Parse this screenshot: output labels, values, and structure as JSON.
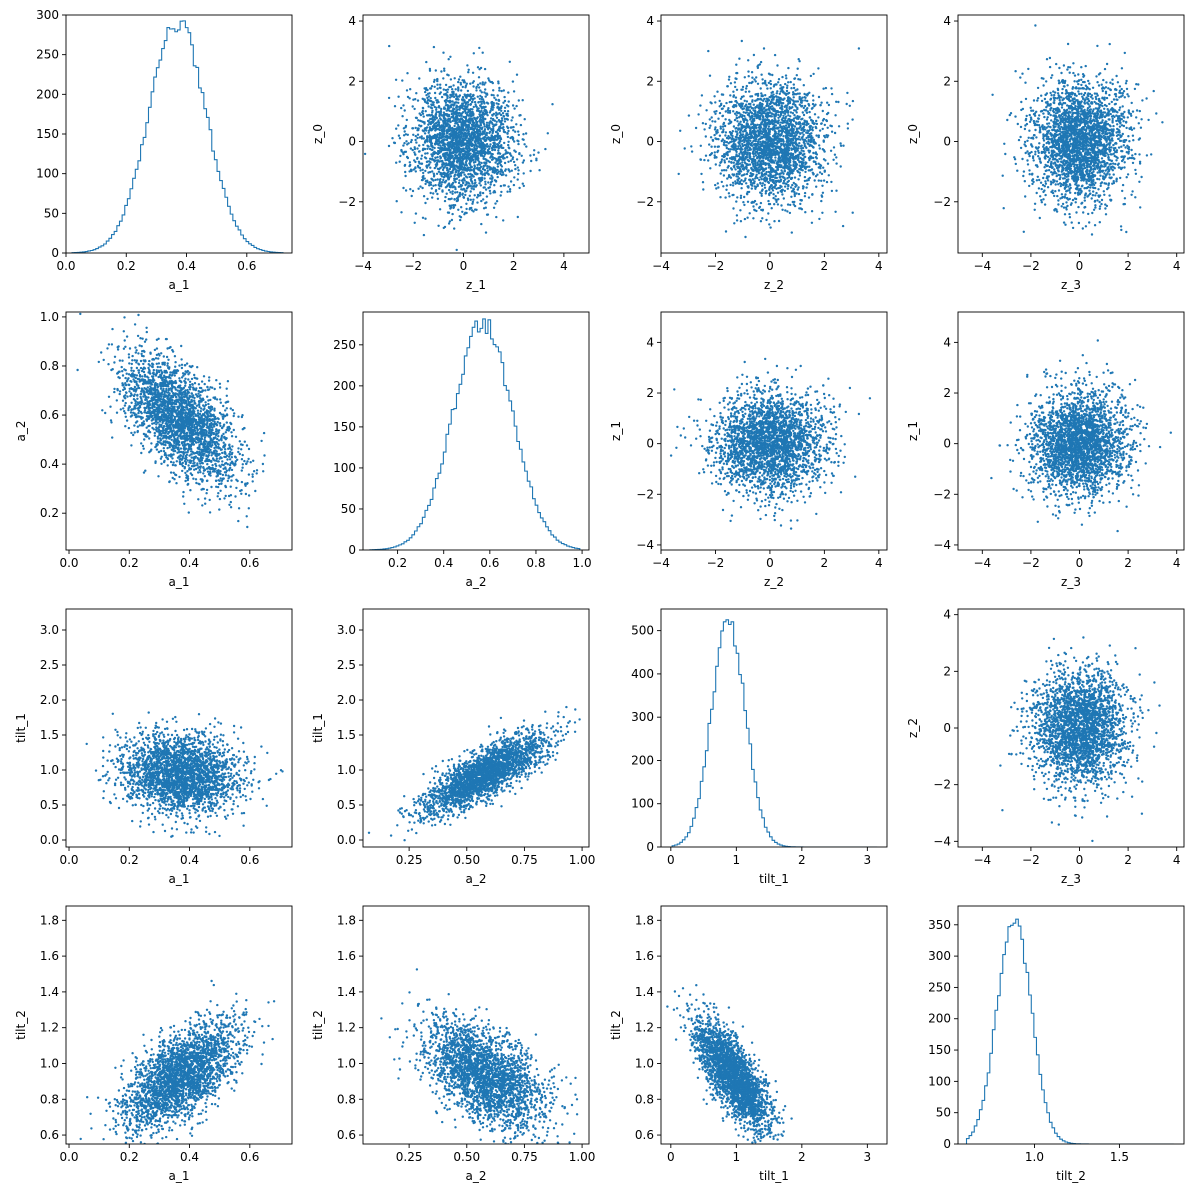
{
  "figure": {
    "series_color": "#1f77b4"
  },
  "chart_data": [
    {
      "type": "histogram",
      "row": 0,
      "col": 0,
      "xlabel": "a_1",
      "ylabel": "",
      "xlim": [
        0.0,
        0.75
      ],
      "ylim": [
        0,
        300
      ],
      "xticks": [
        0.0,
        0.2,
        0.4,
        0.6
      ],
      "xtick_labels": [
        "0.0",
        "0.2",
        "0.4",
        "0.6"
      ],
      "yticks": [
        0,
        50,
        100,
        150,
        200,
        250,
        300
      ],
      "ytick_labels": [
        "0",
        "50",
        "100",
        "150",
        "200",
        "250",
        "300"
      ],
      "bin_range": [
        0.02,
        0.72
      ],
      "peak_x": 0.37,
      "peak_height": 290,
      "spread": 0.095
    },
    {
      "type": "scatter",
      "row": 0,
      "col": 1,
      "xlabel": "z_1",
      "ylabel": "z_0",
      "xlim": [
        -4.0,
        5.0
      ],
      "ylim": [
        -3.7,
        4.2
      ],
      "xticks": [
        -4,
        -2,
        0,
        2,
        4
      ],
      "xtick_labels": [
        "−4",
        "−2",
        "0",
        "2",
        "4"
      ],
      "yticks": [
        -2,
        0,
        2,
        4
      ],
      "ytick_labels": [
        "−2",
        "0",
        "2",
        "4"
      ],
      "x_center": 0,
      "x_spread": 1.0,
      "y_center": 0,
      "y_spread": 1.0,
      "correlation": 0
    },
    {
      "type": "scatter",
      "row": 0,
      "col": 2,
      "xlabel": "z_2",
      "ylabel": "z_0",
      "xlim": [
        -4.0,
        4.3
      ],
      "ylim": [
        -3.7,
        4.2
      ],
      "xticks": [
        -4,
        -2,
        0,
        2,
        4
      ],
      "xtick_labels": [
        "−4",
        "−2",
        "0",
        "2",
        "4"
      ],
      "yticks": [
        -2,
        0,
        2,
        4
      ],
      "ytick_labels": [
        "−2",
        "0",
        "2",
        "4"
      ],
      "x_center": 0,
      "x_spread": 1.0,
      "y_center": 0,
      "y_spread": 1.0,
      "correlation": 0
    },
    {
      "type": "scatter",
      "row": 0,
      "col": 3,
      "xlabel": "z_3",
      "ylabel": "z_0",
      "xlim": [
        -5.0,
        4.3
      ],
      "ylim": [
        -3.7,
        4.2
      ],
      "xticks": [
        -4,
        -2,
        0,
        2,
        4
      ],
      "xtick_labels": [
        "−4",
        "−2",
        "0",
        "2",
        "4"
      ],
      "yticks": [
        -2,
        0,
        2,
        4
      ],
      "ytick_labels": [
        "−2",
        "0",
        "2",
        "4"
      ],
      "x_center": 0,
      "x_spread": 1.0,
      "y_center": 0,
      "y_spread": 1.0,
      "correlation": 0
    },
    {
      "type": "scatter",
      "row": 1,
      "col": 0,
      "xlabel": "a_1",
      "ylabel": "a_2",
      "xlim": [
        -0.01,
        0.74
      ],
      "ylim": [
        0.05,
        1.02
      ],
      "xticks": [
        0.0,
        0.2,
        0.4,
        0.6
      ],
      "xtick_labels": [
        "0.0",
        "0.2",
        "0.4",
        "0.6"
      ],
      "yticks": [
        0.2,
        0.4,
        0.6,
        0.8,
        1.0
      ],
      "ytick_labels": [
        "0.2",
        "0.4",
        "0.6",
        "0.8",
        "1.0"
      ],
      "x_center": 0.37,
      "x_spread": 0.095,
      "y_center": 0.58,
      "y_spread": 0.13,
      "correlation": -0.6
    },
    {
      "type": "histogram",
      "row": 1,
      "col": 1,
      "xlabel": "a_2",
      "ylabel": "",
      "xlim": [
        0.05,
        1.03
      ],
      "ylim": [
        0,
        290
      ],
      "xticks": [
        0.2,
        0.4,
        0.6,
        0.8,
        1.0
      ],
      "xtick_labels": [
        "0.2",
        "0.4",
        "0.6",
        "0.8",
        "1.0"
      ],
      "yticks": [
        0,
        50,
        100,
        150,
        200,
        250
      ],
      "ytick_labels": [
        "0",
        "50",
        "100",
        "150",
        "200",
        "250"
      ],
      "bin_range": [
        0.08,
        0.99
      ],
      "peak_x": 0.57,
      "peak_height": 275,
      "spread": 0.13
    },
    {
      "type": "scatter",
      "row": 1,
      "col": 2,
      "xlabel": "z_2",
      "ylabel": "z_1",
      "xlim": [
        -4.0,
        4.3
      ],
      "ylim": [
        -4.2,
        5.2
      ],
      "xticks": [
        -4,
        -2,
        0,
        2,
        4
      ],
      "xtick_labels": [
        "−4",
        "−2",
        "0",
        "2",
        "4"
      ],
      "yticks": [
        -4,
        -2,
        0,
        2,
        4
      ],
      "ytick_labels": [
        "−4",
        "−2",
        "0",
        "2",
        "4"
      ],
      "x_center": 0,
      "x_spread": 1.0,
      "y_center": 0,
      "y_spread": 1.0,
      "correlation": 0
    },
    {
      "type": "scatter",
      "row": 1,
      "col": 3,
      "xlabel": "z_3",
      "ylabel": "z_1",
      "xlim": [
        -5.0,
        4.3
      ],
      "ylim": [
        -4.2,
        5.2
      ],
      "xticks": [
        -4,
        -2,
        0,
        2,
        4
      ],
      "xtick_labels": [
        "−4",
        "−2",
        "0",
        "2",
        "4"
      ],
      "yticks": [
        -4,
        -2,
        0,
        2,
        4
      ],
      "ytick_labels": [
        "−4",
        "−2",
        "0",
        "2",
        "4"
      ],
      "x_center": 0,
      "x_spread": 1.0,
      "y_center": 0,
      "y_spread": 1.0,
      "correlation": 0
    },
    {
      "type": "scatter",
      "row": 2,
      "col": 0,
      "xlabel": "a_1",
      "ylabel": "tilt_1",
      "xlim": [
        -0.01,
        0.74
      ],
      "ylim": [
        -0.1,
        3.3
      ],
      "xticks": [
        0.0,
        0.2,
        0.4,
        0.6
      ],
      "xtick_labels": [
        "0.0",
        "0.2",
        "0.4",
        "0.6"
      ],
      "yticks": [
        0.0,
        0.5,
        1.0,
        1.5,
        2.0,
        2.5,
        3.0
      ],
      "ytick_labels": [
        "0.0",
        "0.5",
        "1.0",
        "1.5",
        "2.0",
        "2.5",
        "3.0"
      ],
      "x_center": 0.37,
      "x_spread": 0.095,
      "y_center": 0.95,
      "y_spread": 0.28,
      "correlation": -0.1
    },
    {
      "type": "scatter",
      "row": 2,
      "col": 1,
      "xlabel": "a_2",
      "ylabel": "tilt_1",
      "xlim": [
        0.05,
        1.03
      ],
      "ylim": [
        -0.1,
        3.3
      ],
      "xticks": [
        0.25,
        0.5,
        0.75,
        1.0
      ],
      "xtick_labels": [
        "0.25",
        "0.50",
        "0.75",
        "1.00"
      ],
      "yticks": [
        0.0,
        0.5,
        1.0,
        1.5,
        2.0,
        2.5,
        3.0
      ],
      "ytick_labels": [
        "0.0",
        "0.5",
        "1.0",
        "1.5",
        "2.0",
        "2.5",
        "3.0"
      ],
      "x_center": 0.58,
      "x_spread": 0.13,
      "y_center": 0.95,
      "y_spread": 0.28,
      "correlation": 0.8
    },
    {
      "type": "histogram",
      "row": 2,
      "col": 2,
      "xlabel": "tilt_1",
      "ylabel": "",
      "xlim": [
        -0.15,
        3.3
      ],
      "ylim": [
        0,
        550
      ],
      "xticks": [
        0,
        1,
        2,
        3
      ],
      "xtick_labels": [
        "0",
        "1",
        "2",
        "3"
      ],
      "yticks": [
        0,
        100,
        200,
        300,
        400,
        500
      ],
      "ytick_labels": [
        "0",
        "100",
        "200",
        "300",
        "400",
        "500"
      ],
      "bin_range": [
        0.02,
        3.15
      ],
      "peak_x": 0.88,
      "peak_height": 520,
      "spread": 0.26
    },
    {
      "type": "scatter",
      "row": 2,
      "col": 3,
      "xlabel": "z_3",
      "ylabel": "z_2",
      "xlim": [
        -5.0,
        4.3
      ],
      "ylim": [
        -4.2,
        4.2
      ],
      "xticks": [
        -4,
        -2,
        0,
        2,
        4
      ],
      "xtick_labels": [
        "−4",
        "−2",
        "0",
        "2",
        "4"
      ],
      "yticks": [
        -4,
        -2,
        0,
        2,
        4
      ],
      "ytick_labels": [
        "−4",
        "−2",
        "0",
        "2",
        "4"
      ],
      "x_center": 0,
      "x_spread": 1.0,
      "y_center": 0,
      "y_spread": 1.0,
      "correlation": 0
    },
    {
      "type": "scatter",
      "row": 3,
      "col": 0,
      "xlabel": "a_1",
      "ylabel": "tilt_2",
      "xlim": [
        -0.01,
        0.74
      ],
      "ylim": [
        0.55,
        1.88
      ],
      "xticks": [
        0.0,
        0.2,
        0.4,
        0.6
      ],
      "xtick_labels": [
        "0.0",
        "0.2",
        "0.4",
        "0.6"
      ],
      "yticks": [
        0.6,
        0.8,
        1.0,
        1.2,
        1.4,
        1.6,
        1.8
      ],
      "ytick_labels": [
        "0.6",
        "0.8",
        "1.0",
        "1.2",
        "1.4",
        "1.6",
        "1.8"
      ],
      "x_center": 0.37,
      "x_spread": 0.095,
      "y_center": 0.93,
      "y_spread": 0.15,
      "correlation": 0.6
    },
    {
      "type": "scatter",
      "row": 3,
      "col": 1,
      "xlabel": "a_2",
      "ylabel": "tilt_2",
      "xlim": [
        0.05,
        1.03
      ],
      "ylim": [
        0.55,
        1.88
      ],
      "xticks": [
        0.25,
        0.5,
        0.75,
        1.0
      ],
      "xtick_labels": [
        "0.25",
        "0.50",
        "0.75",
        "1.00"
      ],
      "yticks": [
        0.6,
        0.8,
        1.0,
        1.2,
        1.4,
        1.6,
        1.8
      ],
      "ytick_labels": [
        "0.6",
        "0.8",
        "1.0",
        "1.2",
        "1.4",
        "1.6",
        "1.8"
      ],
      "x_center": 0.58,
      "x_spread": 0.13,
      "y_center": 0.93,
      "y_spread": 0.15,
      "correlation": -0.55
    },
    {
      "type": "scatter",
      "row": 3,
      "col": 2,
      "xlabel": "tilt_1",
      "ylabel": "tilt_2",
      "xlim": [
        -0.15,
        3.3
      ],
      "ylim": [
        0.55,
        1.88
      ],
      "xticks": [
        0,
        1,
        2,
        3
      ],
      "xtick_labels": [
        "0",
        "1",
        "2",
        "3"
      ],
      "yticks": [
        0.6,
        0.8,
        1.0,
        1.2,
        1.4,
        1.6,
        1.8
      ],
      "ytick_labels": [
        "0.6",
        "0.8",
        "1.0",
        "1.2",
        "1.4",
        "1.6",
        "1.8"
      ],
      "x_center": 0.95,
      "x_spread": 0.28,
      "y_center": 0.93,
      "y_spread": 0.15,
      "correlation": -0.75
    },
    {
      "type": "histogram",
      "row": 3,
      "col": 3,
      "xlabel": "tilt_2",
      "ylabel": "",
      "xlim": [
        0.55,
        1.88
      ],
      "ylim": [
        0,
        380
      ],
      "xticks": [
        1.0,
        1.5
      ],
      "xtick_labels": [
        "1.0",
        "1.5"
      ],
      "yticks": [
        0,
        50,
        100,
        150,
        200,
        250,
        300,
        350
      ],
      "ytick_labels": [
        "0",
        "50",
        "100",
        "150",
        "200",
        "250",
        "300",
        "350"
      ],
      "bin_range": [
        0.6,
        1.82
      ],
      "peak_x": 0.88,
      "peak_height": 362,
      "spread": 0.1
    }
  ]
}
